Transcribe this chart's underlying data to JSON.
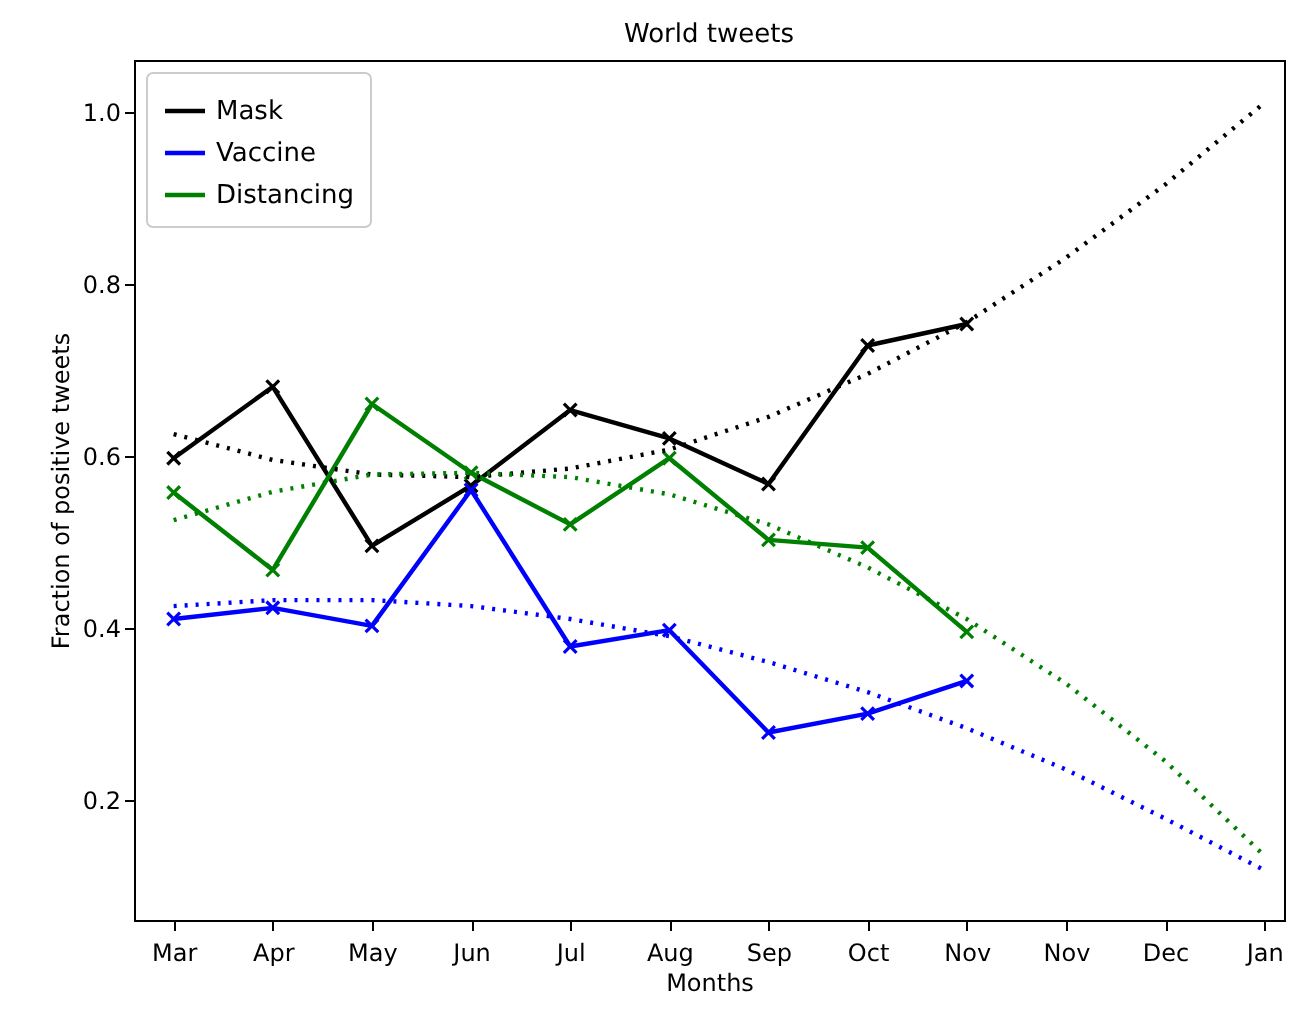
{
  "chart_data": {
    "type": "line",
    "title": "World tweets",
    "xlabel": "Months",
    "ylabel": "Fraction of positive tweets",
    "categories": [
      "Mar",
      "Apr",
      "May",
      "Jun",
      "Jul",
      "Aug",
      "Sep",
      "Oct",
      "Nov",
      "Nov",
      "Dec",
      "Jan"
    ],
    "series": [
      {
        "name": "Mask",
        "color": "#000000",
        "values": [
          0.597,
          0.68,
          0.495,
          0.565,
          0.653,
          0.62,
          0.567,
          0.728,
          0.753,
          null,
          null,
          null
        ]
      },
      {
        "name": "Vaccine",
        "color": "#0000ff",
        "values": [
          0.41,
          0.423,
          0.402,
          0.56,
          0.378,
          0.397,
          0.278,
          0.3,
          0.338,
          null,
          null,
          null
        ]
      },
      {
        "name": "Distancing",
        "color": "#008000",
        "values": [
          0.557,
          0.467,
          0.66,
          0.58,
          0.52,
          0.597,
          0.502,
          0.493,
          0.395,
          null,
          null,
          null
        ]
      },
      {
        "type": "line",
        "color": "#000000",
        "line_style": "dotted",
        "marker": "none",
        "values": [
          0.625,
          0.595,
          0.578,
          0.575,
          0.585,
          0.607,
          0.645,
          0.695,
          0.755,
          0.83,
          0.915,
          1.01
        ]
      },
      {
        "type": "line",
        "color": "#0000ff",
        "line_style": "dotted",
        "marker": "none",
        "values": [
          0.425,
          0.432,
          0.432,
          0.425,
          0.41,
          0.39,
          0.36,
          0.325,
          0.283,
          0.235,
          0.178,
          0.118
        ]
      },
      {
        "type": "line",
        "color": "#008000",
        "line_style": "dotted",
        "marker": "none",
        "values": [
          0.525,
          0.558,
          0.578,
          0.58,
          0.575,
          0.555,
          0.52,
          0.47,
          0.41,
          0.335,
          0.245,
          0.135
        ]
      }
    ],
    "ylim": [
      0.06,
      1.06
    ],
    "yticks": [
      0.2,
      0.4,
      0.6,
      0.8,
      {
        "value": 1.0,
        "label": "1.0"
      }
    ],
    "marker": "cross",
    "line_style": "solid",
    "legend": "top left",
    "grid": false
  }
}
